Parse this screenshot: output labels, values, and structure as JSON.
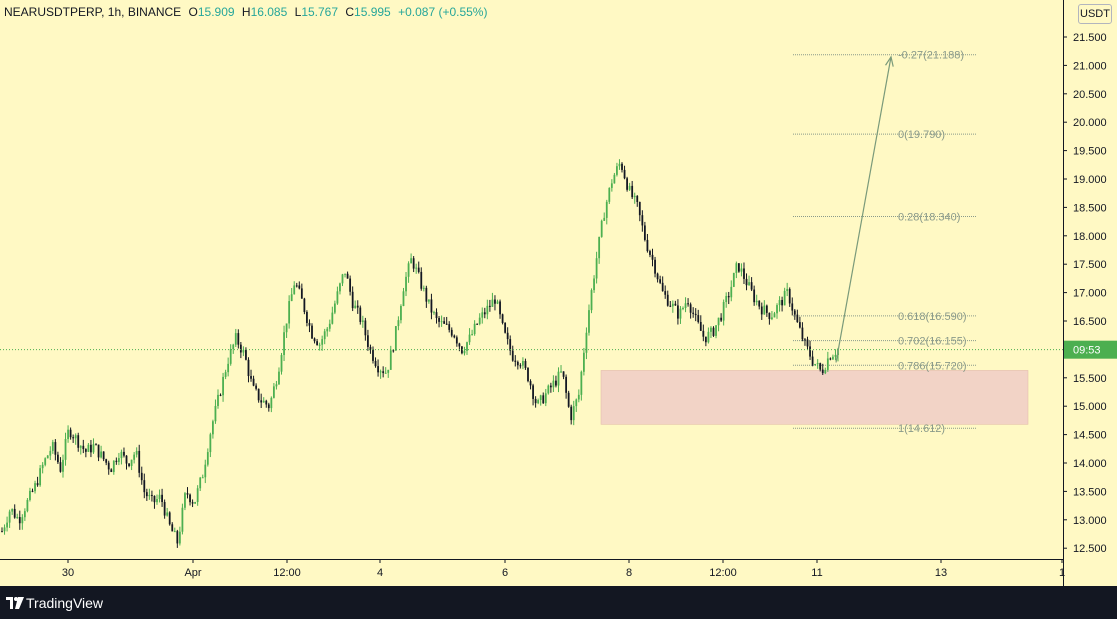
{
  "legend": {
    "symbol": "NEARUSDTPERP, 1h, BINANCE",
    "open_label": "O",
    "open": "15.909",
    "high_label": "H",
    "high": "16.085",
    "low_label": "L",
    "low": "15.767",
    "close_label": "C",
    "close": "15.995",
    "change": "+0.087 (+0.55%)"
  },
  "currency_button": "USDT",
  "current_price_label": "09:53",
  "footer": {
    "brand": "TradingView"
  },
  "colors": {
    "background": "#fff9c4",
    "up": "#4caf50",
    "down": "#131722",
    "fib": "#8a9a8a",
    "zone": "#f2d3c6",
    "axis_text": "#131722",
    "price_line": "#4caf50"
  },
  "chart_data": {
    "type": "candlestick",
    "y_ticks": [
      "21.500",
      "21.000",
      "20.500",
      "20.000",
      "19.500",
      "19.000",
      "18.500",
      "18.000",
      "17.500",
      "17.000",
      "16.500",
      "16.000",
      "15.500",
      "15.000",
      "14.500",
      "14.000",
      "13.500",
      "13.000",
      "12.500"
    ],
    "x_ticks": [
      "30",
      "Apr",
      "12:00",
      "4",
      "6",
      "8",
      "12:00",
      "11",
      "13",
      "1"
    ],
    "fib_levels": [
      {
        "label": "-0.27(21.188)",
        "value": 21.188
      },
      {
        "label": "0(19.790)",
        "value": 19.79
      },
      {
        "label": "0.28(18.340)",
        "value": 18.34
      },
      {
        "label": "0.618(16.590)",
        "value": 16.59
      },
      {
        "label": "0.702(16.155)",
        "value": 16.155
      },
      {
        "label": "0.786(15.720)",
        "value": 15.72
      },
      {
        "label": "1(14.612)",
        "value": 14.612
      }
    ],
    "zone": {
      "top": 15.63,
      "bottom": 14.68
    },
    "arrow": {
      "from": 15.77,
      "to": 21.15
    },
    "current_price": 15.995,
    "price_path": [
      12.8,
      13.2,
      13.0,
      13.3,
      13.6,
      14.0,
      14.3,
      13.9,
      14.6,
      14.4,
      14.2,
      14.3,
      14.1,
      13.9,
      14.2,
      14.0,
      14.2,
      13.5,
      13.3,
      13.4,
      12.9,
      12.6,
      13.5,
      13.3,
      13.8,
      14.6,
      15.2,
      15.8,
      16.2,
      15.9,
      15.3,
      15.1,
      15.0,
      15.6,
      16.5,
      17.2,
      16.8,
      16.3,
      16.1,
      16.4,
      16.9,
      17.4,
      16.8,
      16.5,
      16.0,
      15.7,
      15.6,
      16.2,
      17.1,
      17.6,
      17.2,
      16.8,
      16.5,
      16.4,
      16.3,
      16.0,
      16.2,
      16.5,
      16.7,
      16.9,
      16.3,
      15.9,
      15.8,
      15.5,
      15.0,
      15.2,
      15.4,
      15.6,
      14.8,
      15.2,
      16.5,
      17.5,
      18.4,
      19.0,
      19.3,
      18.8,
      18.5,
      17.9,
      17.5,
      17.0,
      16.8,
      16.6,
      16.9,
      16.5,
      16.2,
      16.3,
      16.6,
      17.0,
      17.5,
      17.2,
      16.9,
      16.7,
      16.6,
      16.8,
      17.0,
      16.5,
      16.1,
      15.8,
      15.6,
      15.9,
      16.0
    ]
  }
}
